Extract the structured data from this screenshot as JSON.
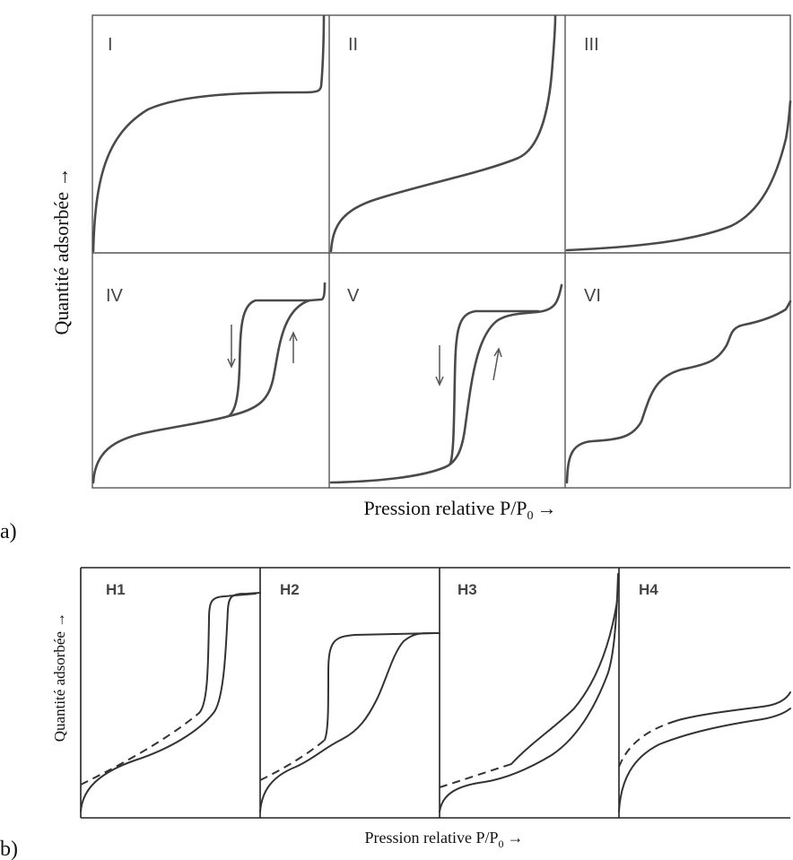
{
  "figure_a": {
    "part_label": "a)",
    "y_axis_label": "Quantité adsorbée →",
    "x_axis_label": "Pression relative P/P",
    "x_axis_subscript": "0",
    "x_axis_arrow": "→",
    "panels": [
      "I",
      "II",
      "III",
      "IV",
      "V",
      "VI"
    ]
  },
  "figure_b": {
    "part_label": "b)",
    "y_axis_label": "Quantité adsorbée →",
    "x_axis_label": "Pression relative P/P",
    "x_axis_subscript": "0",
    "x_axis_arrow": "→",
    "panels": [
      "H1",
      "H2",
      "H3",
      "H4"
    ]
  }
}
